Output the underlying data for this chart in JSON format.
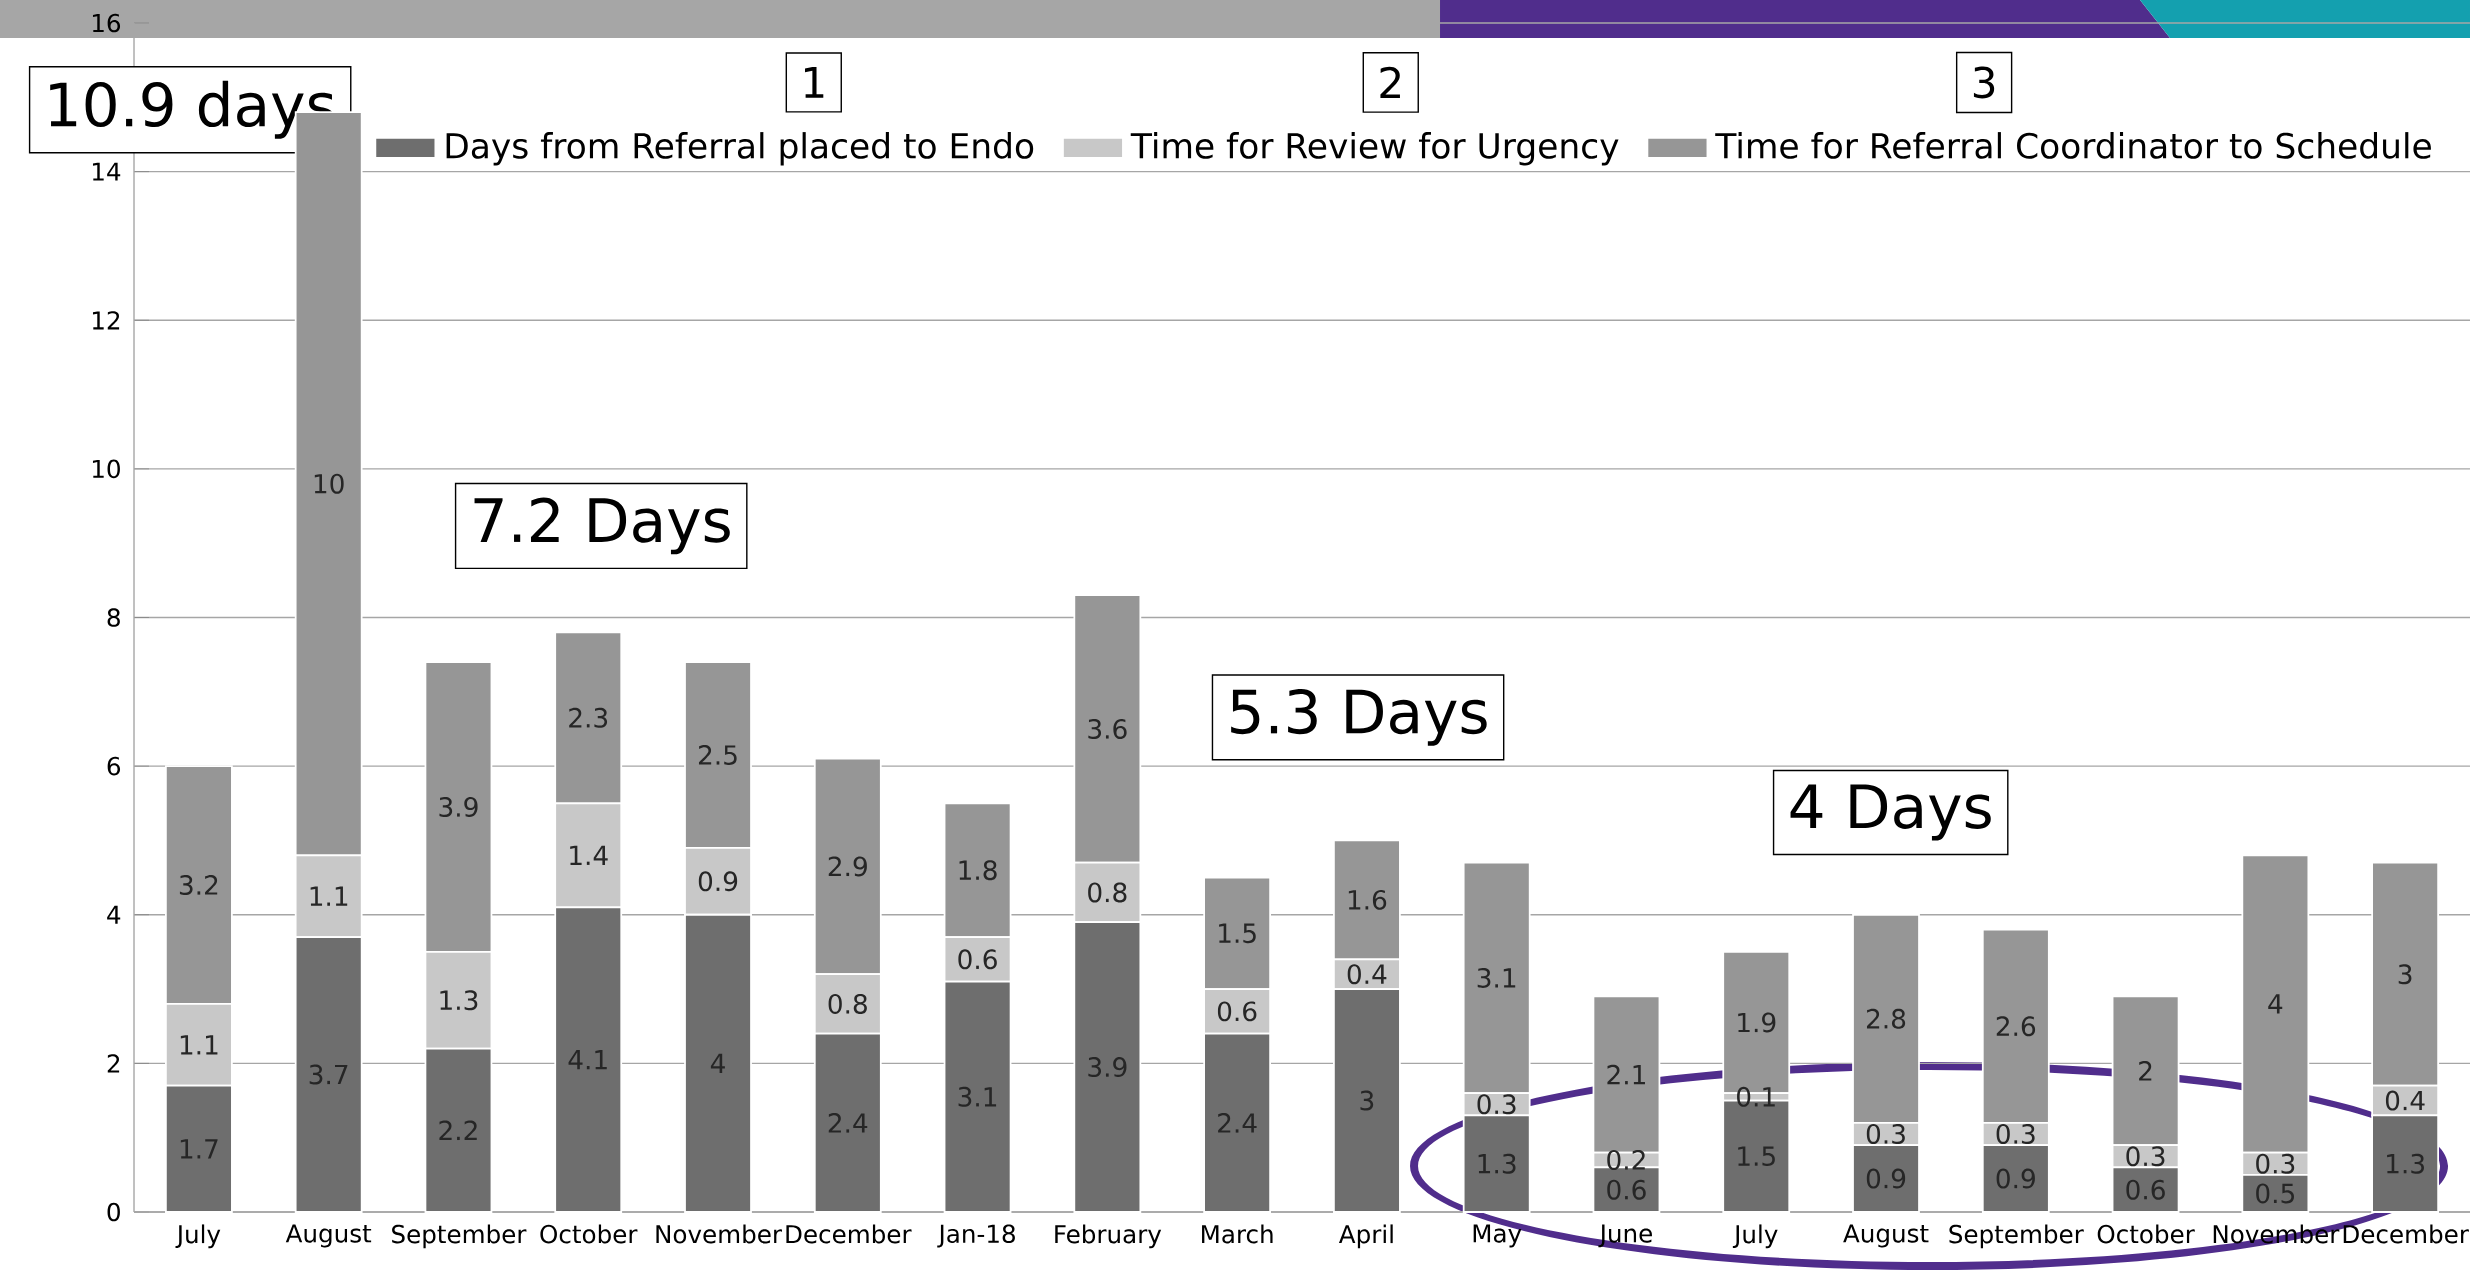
{
  "chart_data": {
    "type": "bar",
    "stacked": true,
    "categories": [
      "July",
      "August",
      "September",
      "October",
      "November",
      "December",
      "Jan-18",
      "February",
      "March",
      "April",
      "May",
      "June",
      "July",
      "August",
      "September",
      "October",
      "November",
      "December"
    ],
    "series": [
      {
        "name": "Days from Referral placed to Endo",
        "color": "#6e6e6e",
        "values": [
          1.7,
          3.7,
          2.2,
          4.1,
          4,
          2.4,
          3.1,
          3.9,
          2.4,
          3,
          1.3,
          0.6,
          1.5,
          0.9,
          0.9,
          0.6,
          0.5,
          1.3
        ]
      },
      {
        "name": "Time for Review for Urgency",
        "color": "#c8c8c8",
        "values": [
          1.1,
          1.1,
          1.3,
          1.4,
          0.9,
          0.8,
          0.6,
          0.8,
          0.6,
          0.4,
          0.3,
          0.2,
          0.1,
          0.3,
          0.3,
          0.3,
          0.3,
          0.4
        ]
      },
      {
        "name": "Time for Referral Coordinator to Schedule",
        "color": "#969696",
        "values": [
          3.2,
          10,
          3.9,
          2.3,
          2.5,
          2.9,
          1.8,
          3.6,
          1.5,
          1.6,
          3.1,
          2.1,
          1.9,
          2.8,
          2.6,
          2,
          4,
          3
        ]
      }
    ],
    "ylim": [
      0,
      16
    ],
    "yticks": [
      0,
      2,
      4,
      6,
      8,
      10,
      12,
      14,
      16
    ],
    "grid": "y",
    "legend": "top",
    "data_labels": true,
    "annotations": [
      "1",
      "2",
      "3",
      "10.9 days",
      "7.2 Days",
      "5.3 Days",
      "4 Days"
    ]
  }
}
